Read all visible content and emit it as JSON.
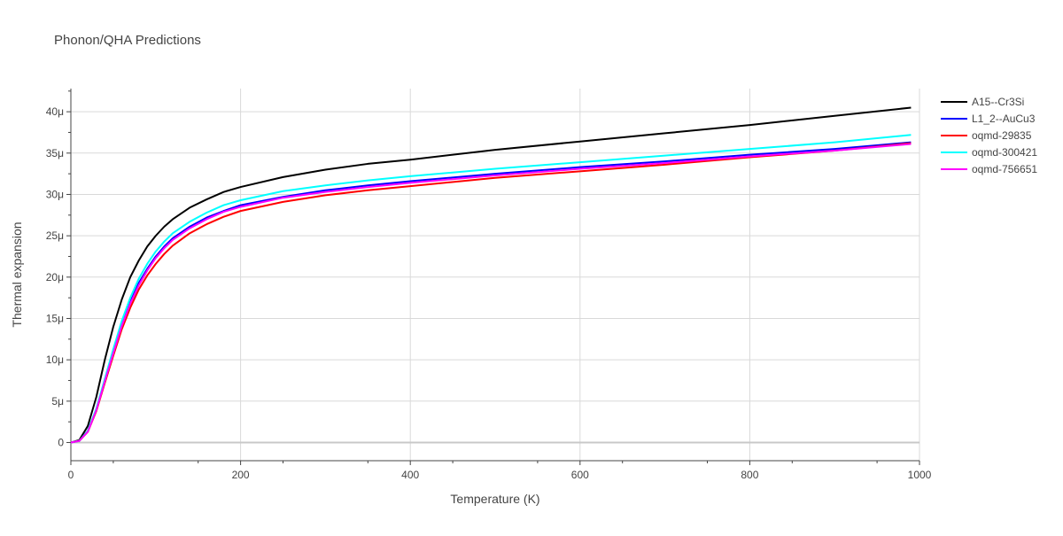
{
  "chart_data": {
    "type": "line",
    "title": "Phonon/QHA Predictions",
    "xlabel": "Temperature (K)",
    "ylabel": "Thermal expansion",
    "xlim": [
      0,
      1000
    ],
    "ylim": [
      -2.2,
      42.8
    ],
    "x_ticks": [
      0,
      200,
      400,
      600,
      800,
      1000
    ],
    "x_tick_labels": [
      "0",
      "200",
      "400",
      "600",
      "800",
      "1000"
    ],
    "y_ticks": [
      0,
      5,
      10,
      15,
      20,
      25,
      30,
      35,
      40
    ],
    "y_tick_labels": [
      "0",
      "5μ",
      "10μ",
      "15μ",
      "20μ",
      "25μ",
      "30μ",
      "35μ",
      "40μ"
    ],
    "y_unit_scale": "1e-6",
    "grid": true,
    "legend_position": "right",
    "series": [
      {
        "name": "A15--Cr3Si",
        "color": "#000000",
        "points": [
          [
            0,
            0
          ],
          [
            10,
            0.3
          ],
          [
            20,
            2
          ],
          [
            30,
            5.5
          ],
          [
            40,
            10
          ],
          [
            50,
            14
          ],
          [
            60,
            17.3
          ],
          [
            70,
            20
          ],
          [
            80,
            22
          ],
          [
            90,
            23.7
          ],
          [
            100,
            25
          ],
          [
            110,
            26.1
          ],
          [
            120,
            27
          ],
          [
            140,
            28.4
          ],
          [
            160,
            29.4
          ],
          [
            180,
            30.3
          ],
          [
            200,
            30.9
          ],
          [
            250,
            32.1
          ],
          [
            300,
            33
          ],
          [
            350,
            33.7
          ],
          [
            400,
            34.2
          ],
          [
            500,
            35.4
          ],
          [
            600,
            36.4
          ],
          [
            700,
            37.4
          ],
          [
            800,
            38.4
          ],
          [
            900,
            39.5
          ],
          [
            990,
            40.5
          ]
        ]
      },
      {
        "name": "L1_2--AuCu3",
        "color": "#0000ff",
        "points": [
          [
            0,
            0
          ],
          [
            10,
            0.2
          ],
          [
            20,
            1.4
          ],
          [
            30,
            4
          ],
          [
            40,
            7.5
          ],
          [
            50,
            11
          ],
          [
            60,
            14.3
          ],
          [
            70,
            17
          ],
          [
            80,
            19.3
          ],
          [
            90,
            21
          ],
          [
            100,
            22.5
          ],
          [
            110,
            23.7
          ],
          [
            120,
            24.7
          ],
          [
            140,
            26.1
          ],
          [
            160,
            27.2
          ],
          [
            180,
            28
          ],
          [
            200,
            28.7
          ],
          [
            250,
            29.7
          ],
          [
            300,
            30.5
          ],
          [
            350,
            31.1
          ],
          [
            400,
            31.6
          ],
          [
            500,
            32.5
          ],
          [
            600,
            33.3
          ],
          [
            700,
            34
          ],
          [
            800,
            34.8
          ],
          [
            900,
            35.5
          ],
          [
            990,
            36.3
          ]
        ]
      },
      {
        "name": "oqmd-29835",
        "color": "#ff0000",
        "points": [
          [
            0,
            0
          ],
          [
            10,
            0.2
          ],
          [
            20,
            1.3
          ],
          [
            30,
            3.8
          ],
          [
            40,
            7.2
          ],
          [
            50,
            10.5
          ],
          [
            60,
            13.7
          ],
          [
            70,
            16.3
          ],
          [
            80,
            18.5
          ],
          [
            90,
            20.2
          ],
          [
            100,
            21.6
          ],
          [
            110,
            22.8
          ],
          [
            120,
            23.8
          ],
          [
            140,
            25.3
          ],
          [
            160,
            26.4
          ],
          [
            180,
            27.3
          ],
          [
            200,
            28
          ],
          [
            250,
            29.1
          ],
          [
            300,
            29.9
          ],
          [
            350,
            30.5
          ],
          [
            400,
            31
          ],
          [
            500,
            32
          ],
          [
            600,
            32.8
          ],
          [
            700,
            33.6
          ],
          [
            800,
            34.5
          ],
          [
            900,
            35.3
          ],
          [
            990,
            36.2
          ]
        ]
      },
      {
        "name": "oqmd-300421",
        "color": "#00ffff",
        "points": [
          [
            0,
            0
          ],
          [
            10,
            0.2
          ],
          [
            20,
            1.4
          ],
          [
            30,
            4.1
          ],
          [
            40,
            7.7
          ],
          [
            50,
            11.3
          ],
          [
            60,
            14.7
          ],
          [
            70,
            17.5
          ],
          [
            80,
            19.8
          ],
          [
            90,
            21.6
          ],
          [
            100,
            23.1
          ],
          [
            110,
            24.3
          ],
          [
            120,
            25.3
          ],
          [
            140,
            26.7
          ],
          [
            160,
            27.8
          ],
          [
            180,
            28.7
          ],
          [
            200,
            29.3
          ],
          [
            250,
            30.4
          ],
          [
            300,
            31.1
          ],
          [
            350,
            31.7
          ],
          [
            400,
            32.2
          ],
          [
            500,
            33.1
          ],
          [
            600,
            33.9
          ],
          [
            700,
            34.7
          ],
          [
            800,
            35.5
          ],
          [
            900,
            36.3
          ],
          [
            990,
            37.2
          ]
        ]
      },
      {
        "name": "oqmd-756651",
        "color": "#ff00ff",
        "points": [
          [
            0,
            0
          ],
          [
            10,
            0.2
          ],
          [
            20,
            1.3
          ],
          [
            30,
            3.9
          ],
          [
            40,
            7.4
          ],
          [
            50,
            10.8
          ],
          [
            60,
            14.1
          ],
          [
            70,
            16.8
          ],
          [
            80,
            19
          ],
          [
            90,
            20.8
          ],
          [
            100,
            22.3
          ],
          [
            110,
            23.5
          ],
          [
            120,
            24.5
          ],
          [
            140,
            25.9
          ],
          [
            160,
            27
          ],
          [
            180,
            27.9
          ],
          [
            200,
            28.5
          ],
          [
            250,
            29.6
          ],
          [
            300,
            30.3
          ],
          [
            350,
            30.9
          ],
          [
            400,
            31.4
          ],
          [
            500,
            32.3
          ],
          [
            600,
            33.1
          ],
          [
            700,
            33.8
          ],
          [
            800,
            34.6
          ],
          [
            900,
            35.3
          ],
          [
            990,
            36.1
          ]
        ]
      }
    ]
  }
}
